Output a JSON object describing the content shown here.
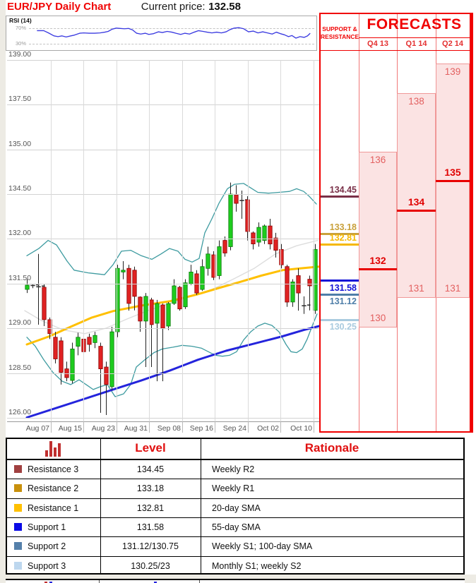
{
  "header": {
    "title": "EUR/JPY Daily Chart",
    "cp_label": "Current price:",
    "cp_value": "132.58"
  },
  "rsi": {
    "label": "RSI (14)",
    "upper_label": "70%",
    "lower_label": "30%",
    "line_color": "#3A3AE0",
    "points": [
      [
        45,
        64
      ],
      [
        55,
        64
      ],
      [
        62,
        58
      ],
      [
        70,
        50
      ],
      [
        76,
        48
      ],
      [
        82,
        50
      ],
      [
        88,
        47
      ],
      [
        95,
        50
      ],
      [
        100,
        52
      ],
      [
        108,
        57
      ],
      [
        114,
        58
      ],
      [
        122,
        57
      ],
      [
        130,
        57
      ],
      [
        138,
        58
      ],
      [
        145,
        60
      ],
      [
        150,
        62
      ],
      [
        156,
        68
      ],
      [
        162,
        71
      ],
      [
        168,
        70
      ],
      [
        174,
        69
      ],
      [
        180,
        70
      ],
      [
        186,
        66
      ],
      [
        192,
        57
      ],
      [
        198,
        55
      ],
      [
        205,
        57
      ],
      [
        210,
        54
      ],
      [
        217,
        56
      ],
      [
        224,
        61
      ],
      [
        230,
        59
      ],
      [
        237,
        62
      ],
      [
        244,
        60
      ],
      [
        250,
        57
      ],
      [
        257,
        54
      ],
      [
        263,
        57
      ],
      [
        270,
        55
      ],
      [
        277,
        60
      ],
      [
        283,
        64
      ],
      [
        290,
        62
      ],
      [
        296,
        60
      ],
      [
        303,
        58
      ],
      [
        310,
        60
      ],
      [
        317,
        58
      ],
      [
        324,
        61
      ],
      [
        330,
        67
      ],
      [
        336,
        71
      ],
      [
        343,
        72
      ],
      [
        350,
        69
      ],
      [
        357,
        61
      ],
      [
        364,
        63
      ],
      [
        371,
        58
      ],
      [
        378,
        61
      ],
      [
        385,
        58
      ],
      [
        392,
        55
      ],
      [
        398,
        60
      ],
      [
        404,
        56
      ],
      [
        410,
        53
      ],
      [
        416,
        48
      ],
      [
        421,
        51
      ],
      [
        427,
        44
      ],
      [
        433,
        48
      ],
      [
        439,
        46
      ],
      [
        444,
        50
      ],
      [
        448,
        57
      ]
    ]
  },
  "chart_data": {
    "type": "candlestick",
    "title": "EUR/JPY Daily Chart",
    "y_tick_labels": [
      "139.00",
      "137.50",
      "135.00",
      "134.50",
      "132.00",
      "131.50",
      "129.00",
      "128.50",
      "126.00"
    ],
    "x_ticks": [
      "Aug 07",
      "Aug 15",
      "Aug 23",
      "Aug 31",
      "Sep 08",
      "Sep 16",
      "Sep 24",
      "Oct 02",
      "Oct 10"
    ],
    "up_color": "#1ECC1E",
    "down_color": "#E02222",
    "candles": [
      {
        "o": 131.18,
        "h": 131.55,
        "l": 130.98,
        "c": 131.42
      },
      {
        "o": 131.36,
        "h": 131.5,
        "l": 131.25,
        "c": 131.4,
        "d": 1
      },
      {
        "o": 131.3,
        "h": 131.83,
        "l": 129.2,
        "c": 131.33,
        "d": 1
      },
      {
        "o": 131.3,
        "h": 131.5,
        "l": 129.12,
        "c": 129.48
      },
      {
        "o": 129.48,
        "h": 129.6,
        "l": 128.88,
        "c": 128.94
      },
      {
        "o": 128.9,
        "h": 128.96,
        "l": 128.61,
        "c": 128.66
      },
      {
        "o": 128.86,
        "h": 128.9,
        "l": 127.87,
        "c": 128.51
      },
      {
        "o": 128.55,
        "h": 128.63,
        "l": 128.06,
        "c": 128.26
      },
      {
        "o": 128.1,
        "h": 128.84,
        "l": 127.94,
        "c": 128.77
      },
      {
        "o": 128.8,
        "h": 128.95,
        "l": 128.7,
        "c": 128.9
      },
      {
        "o": 128.88,
        "h": 128.92,
        "l": 128.66,
        "c": 128.74
      },
      {
        "o": 128.9,
        "h": 128.94,
        "l": 128.74,
        "c": 128.82
      },
      {
        "o": 128.84,
        "h": 128.96,
        "l": 128.78,
        "c": 128.92
      },
      {
        "o": 128.8,
        "h": 128.84,
        "l": 126.28,
        "c": 128.55
      },
      {
        "o": 128.57,
        "h": 128.63,
        "l": 126.16,
        "c": 127.87
      },
      {
        "o": 127.75,
        "h": 129.08,
        "l": 127.55,
        "c": 128.96
      },
      {
        "o": 128.96,
        "h": 131.71,
        "l": 128.9,
        "c": 131.67
      },
      {
        "o": 131.63,
        "h": 131.75,
        "l": 131.55,
        "c": 131.65,
        "d": 1
      },
      {
        "o": 131.67,
        "h": 131.71,
        "l": 129.99,
        "c": 130.39
      },
      {
        "o": 131.65,
        "h": 131.69,
        "l": 130.0,
        "c": 130.79
      },
      {
        "o": 130.75,
        "h": 130.79,
        "l": 128.96,
        "c": 129.4
      },
      {
        "o": 129.4,
        "h": 130.98,
        "l": 128.57,
        "c": 130.79
      },
      {
        "o": 130.59,
        "h": 130.71,
        "l": 128.57,
        "c": 129.2
      },
      {
        "o": 129.28,
        "h": 130.59,
        "l": 128.06,
        "c": 130.39
      },
      {
        "o": 130.31,
        "h": 130.39,
        "l": 128.06,
        "c": 129.0
      },
      {
        "o": 129.12,
        "h": 130.47,
        "l": 128.98,
        "c": 130.39
      },
      {
        "o": 130.39,
        "h": 131.55,
        "l": 130.31,
        "c": 131.38
      },
      {
        "o": 131.3,
        "h": 131.38,
        "l": 129.99,
        "c": 130.08
      },
      {
        "o": 130.2,
        "h": 131.55,
        "l": 130.08,
        "c": 131.51
      },
      {
        "o": 131.5,
        "h": 131.71,
        "l": 131.42,
        "c": 131.63
      },
      {
        "o": 131.61,
        "h": 131.65,
        "l": 130.87,
        "c": 130.98
      },
      {
        "o": 131.18,
        "h": 131.77,
        "l": 131.1,
        "c": 131.69
      },
      {
        "o": 131.67,
        "h": 131.91,
        "l": 131.59,
        "c": 131.83
      },
      {
        "o": 131.82,
        "h": 131.86,
        "l": 131.54,
        "c": 131.57
      },
      {
        "o": 131.59,
        "h": 131.98,
        "l": 131.55,
        "c": 131.91
      },
      {
        "o": 131.98,
        "h": 132.12,
        "l": 131.8,
        "c": 131.84
      },
      {
        "o": 131.91,
        "h": 134.63,
        "l": 131.87,
        "c": 134.5
      },
      {
        "o": 134.46,
        "h": 134.6,
        "l": 133.51,
        "c": 133.98
      },
      {
        "o": 134.1,
        "h": 134.54,
        "l": 133.11,
        "c": 134.14,
        "d": 1
      },
      {
        "o": 134.18,
        "h": 134.38,
        "l": 131.98,
        "c": 132.4
      },
      {
        "o": 132.32,
        "h": 132.4,
        "l": 131.88,
        "c": 131.94
      },
      {
        "o": 131.96,
        "h": 132.91,
        "l": 131.91,
        "c": 132.63
      },
      {
        "o": 131.98,
        "h": 132.79,
        "l": 131.94,
        "c": 132.71
      },
      {
        "o": 132.71,
        "h": 133.11,
        "l": 131.88,
        "c": 131.94
      },
      {
        "o": 132.03,
        "h": 132.32,
        "l": 131.79,
        "c": 131.87
      },
      {
        "o": 131.88,
        "h": 131.94,
        "l": 131.67,
        "c": 131.71
      },
      {
        "o": 131.69,
        "h": 131.71,
        "l": 130.2,
        "c": 130.47
      },
      {
        "o": 130.47,
        "h": 131.55,
        "l": 130.2,
        "c": 131.52
      },
      {
        "o": 131.59,
        "h": 131.67,
        "l": 129.99,
        "c": 130.98
      },
      {
        "o": 130.23,
        "h": 130.79,
        "l": 129.8,
        "c": 130.26,
        "d": 1
      },
      {
        "o": 131.55,
        "h": 131.59,
        "l": 130.0,
        "c": 131.38
      },
      {
        "o": 130.0,
        "h": 131.94,
        "l": 129.8,
        "c": 131.88
      }
    ],
    "overlays": {
      "bollinger_upper": {
        "color": "#3E9BA0",
        "points": [
          [
            38,
            131.81
          ],
          [
            55,
            131.89
          ],
          [
            68,
            131.98
          ],
          [
            80,
            131.93
          ],
          [
            95,
            131.75
          ],
          [
            105,
            131.65
          ],
          [
            125,
            131.62
          ],
          [
            148,
            131.6
          ],
          [
            160,
            131.71
          ],
          [
            172,
            131.86
          ],
          [
            185,
            131.87
          ],
          [
            200,
            131.81
          ],
          [
            215,
            131.77
          ],
          [
            228,
            131.83
          ],
          [
            240,
            131.89
          ],
          [
            252,
            131.86
          ],
          [
            262,
            131.77
          ],
          [
            272,
            131.74
          ],
          [
            282,
            131.78
          ],
          [
            290,
            132.32
          ],
          [
            300,
            133.11
          ],
          [
            310,
            133.98
          ],
          [
            322,
            134.56
          ],
          [
            332,
            134.61
          ],
          [
            345,
            134.62
          ],
          [
            355,
            134.57
          ],
          [
            365,
            134.52
          ],
          [
            380,
            134.51
          ],
          [
            395,
            134.52
          ],
          [
            410,
            134.53
          ],
          [
            420,
            134.56
          ],
          [
            430,
            134.53
          ],
          [
            438,
            134.37
          ],
          [
            448,
            133.94
          ]
        ]
      },
      "bollinger_lower": {
        "color": "#3E9BA0",
        "points": [
          [
            38,
            128.9
          ],
          [
            50,
            128.8
          ],
          [
            62,
            128.65
          ],
          [
            75,
            128.51
          ],
          [
            88,
            128.06
          ],
          [
            100,
            127.87
          ],
          [
            112,
            128.14
          ],
          [
            122,
            127.87
          ],
          [
            132,
            127.59
          ],
          [
            142,
            127.75
          ],
          [
            152,
            127.87
          ],
          [
            163,
            127.19
          ],
          [
            175,
            127.35
          ],
          [
            185,
            127.87
          ],
          [
            193,
            128.57
          ],
          [
            205,
            128.65
          ],
          [
            218,
            128.73
          ],
          [
            230,
            128.77
          ],
          [
            245,
            128.79
          ],
          [
            258,
            128.81
          ],
          [
            272,
            128.8
          ],
          [
            285,
            128.78
          ],
          [
            295,
            128.74
          ],
          [
            305,
            128.7
          ],
          [
            315,
            128.69
          ],
          [
            325,
            128.7
          ],
          [
            335,
            128.74
          ],
          [
            345,
            128.87
          ],
          [
            355,
            128.96
          ],
          [
            365,
            129.12
          ],
          [
            375,
            129.28
          ],
          [
            385,
            129.16
          ],
          [
            395,
            128.96
          ],
          [
            405,
            128.82
          ],
          [
            412,
            128.74
          ],
          [
            420,
            128.73
          ],
          [
            428,
            128.77
          ],
          [
            435,
            128.88
          ],
          [
            442,
            129.12
          ],
          [
            449,
            129.8
          ]
        ]
      },
      "sma20": {
        "color": "#FFC000",
        "points": [
          [
            38,
            128.82
          ],
          [
            70,
            128.91
          ],
          [
            100,
            129.08
          ],
          [
            130,
            129.6
          ],
          [
            160,
            129.96
          ],
          [
            200,
            130.27
          ],
          [
            240,
            130.51
          ],
          [
            280,
            130.91
          ],
          [
            310,
            131.26
          ],
          [
            340,
            131.52
          ],
          [
            370,
            131.59
          ],
          [
            400,
            131.65
          ],
          [
            425,
            131.67
          ],
          [
            452,
            131.69
          ]
        ]
      },
      "sma55": {
        "color": "#2424DC",
        "points": [
          [
            38,
            126.02
          ],
          [
            80,
            126.56
          ],
          [
            120,
            127.07
          ],
          [
            160,
            127.59
          ],
          [
            200,
            128.1
          ],
          [
            240,
            128.53
          ],
          [
            280,
            128.65
          ],
          [
            320,
            128.75
          ],
          [
            360,
            128.83
          ],
          [
            400,
            128.91
          ],
          [
            430,
            128.98
          ],
          [
            452,
            129.12
          ]
        ]
      },
      "sma100": {
        "color": "#DDDDDD",
        "points": [
          [
            35,
            129.99
          ],
          [
            60,
            129.4
          ],
          [
            90,
            128.98
          ],
          [
            120,
            128.94
          ],
          [
            150,
            129.0
          ],
          [
            180,
            129.52
          ],
          [
            210,
            130.0
          ],
          [
            240,
            130.39
          ],
          [
            270,
            130.79
          ],
          [
            300,
            131.18
          ],
          [
            330,
            131.55
          ],
          [
            360,
            131.67
          ],
          [
            390,
            131.83
          ],
          [
            420,
            131.92
          ],
          [
            450,
            131.98
          ]
        ]
      }
    }
  },
  "snr": {
    "line1": "SUPPORT &",
    "line2": "RESISTANCE",
    "levels": [
      {
        "label": "134.45",
        "value": 134.45,
        "color": "#7A3048",
        "side": "above"
      },
      {
        "label": "133.18",
        "value": 133.18,
        "color": "#C9A13B",
        "side": "above"
      },
      {
        "label": "132.81",
        "value": 132.81,
        "color": "#F5B800",
        "side": "above"
      },
      {
        "label": "131.58",
        "value": 131.58,
        "color": "#1212D6",
        "side": "below"
      },
      {
        "label": "131.12",
        "value": 131.12,
        "color": "#4E7EA8",
        "side": "below"
      },
      {
        "label": "130.25",
        "value": 130.25,
        "color": "#A9CBDF",
        "side": "below"
      }
    ]
  },
  "forecasts": {
    "title": "FORECASTS",
    "columns": [
      {
        "label": "Q4 13",
        "high": 136,
        "low": 130,
        "central": 132
      },
      {
        "label": "Q1 14",
        "high": 138,
        "low": 131,
        "central": 134
      },
      {
        "label": "Q2 14",
        "high": 139,
        "low": 131,
        "central": 135
      }
    ]
  },
  "table": {
    "col_level": "Level",
    "col_rationale": "Rationale",
    "icon_color": "#C03030",
    "rows": [
      {
        "square": "#A04040",
        "label": "Resistance 3",
        "level": "134.45",
        "rationale": "Weekly R2"
      },
      {
        "square": "#C8900C",
        "label": "Resistance 2",
        "level": "133.18",
        "rationale": "Weekly R1"
      },
      {
        "square": "#FFC000",
        "label": "Resistance 1",
        "level": "132.81",
        "rationale": "20-day SMA"
      },
      {
        "square": "#0A0AE6",
        "label": "Support 1",
        "level": "131.58",
        "rationale": "55-day SMA"
      },
      {
        "square": "#5580AA",
        "label": "Support 2",
        "level": "131.12/130.75",
        "rationale": "Weekly S1; 100-day SMA"
      },
      {
        "square": "#BDD7EE",
        "label": "Support 3",
        "level": "130.25/23",
        "rationale": "Monthly S1; weekly S2"
      }
    ]
  }
}
